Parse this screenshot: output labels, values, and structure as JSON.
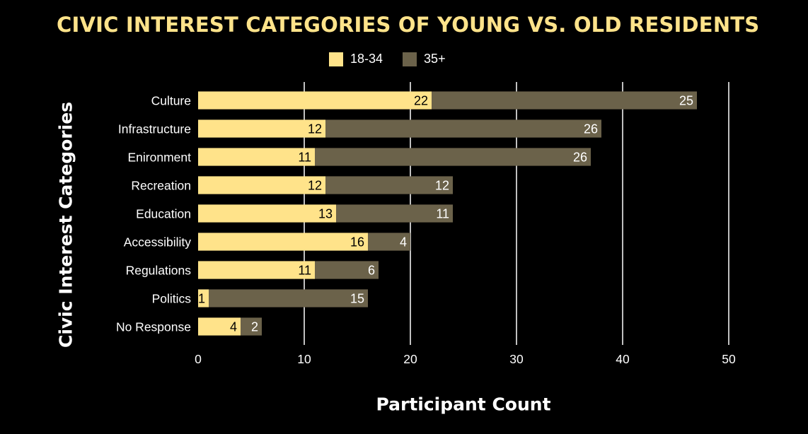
{
  "chart_data": {
    "type": "bar",
    "orientation": "horizontal",
    "stacked": true,
    "title": "CIVIC INTEREST CATEGORIES OF YOUNG VS. OLD RESIDENTS",
    "xlabel": "Participant Count",
    "ylabel": "Civic Interest Categories",
    "xlim": [
      0,
      50
    ],
    "xticks": [
      0,
      10,
      20,
      30,
      40,
      50
    ],
    "grid": true,
    "legend_position": "top-center",
    "categories": [
      "Culture",
      "Infrastructure",
      "Enironment",
      "Recreation",
      "Education",
      "Accessibility",
      "Regulations",
      "Politics",
      "No Response"
    ],
    "series": [
      {
        "name": "18-34",
        "color": "#FFE38A",
        "label_color": "#000000",
        "values": [
          22,
          12,
          11,
          12,
          13,
          16,
          11,
          1,
          4
        ]
      },
      {
        "name": "35+",
        "color": "#6B624A",
        "label_color": "#ffffff",
        "values": [
          25,
          26,
          26,
          12,
          11,
          4,
          6,
          15,
          2
        ]
      }
    ]
  }
}
